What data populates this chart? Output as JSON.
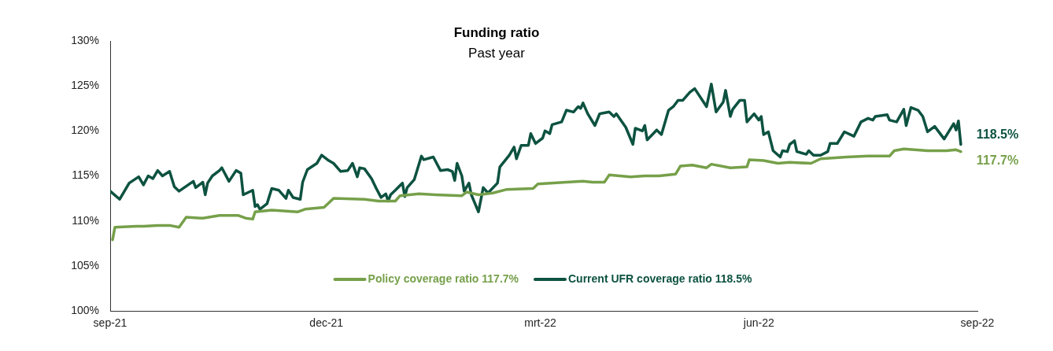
{
  "chart_data": {
    "type": "line",
    "title": "Funding ratio",
    "subtitle": "Past year",
    "xlim": [
      "2021-09-01",
      "2022-09-01"
    ],
    "xticks": [
      {
        "value": "2021-09-01",
        "label": "sep-21"
      },
      {
        "value": "2021-12-01",
        "label": "dec-21"
      },
      {
        "value": "2022-03-01",
        "label": "mrt-22"
      },
      {
        "value": "2022-06-01",
        "label": "jun-22"
      },
      {
        "value": "2022-09-01",
        "label": "sep-22"
      }
    ],
    "ylim": [
      100,
      130
    ],
    "yticks": [
      {
        "value": 100,
        "label": "100%"
      },
      {
        "value": 105,
        "label": "105%"
      },
      {
        "value": 110,
        "label": "110%"
      },
      {
        "value": 115,
        "label": "115%"
      },
      {
        "value": 120,
        "label": "120%"
      },
      {
        "value": 125,
        "label": "125%"
      },
      {
        "value": 130,
        "label": "130%"
      }
    ],
    "legend": "bottom",
    "line_style": "solid",
    "annotations": [
      {
        "text": "117.7%",
        "x": "2022-08-25",
        "y": 117.7
      },
      {
        "text": "118.5%",
        "x": "2022-08-25",
        "y": 118.5
      }
    ],
    "series": [
      {
        "name": "Policy coverage ratio 117.7%",
        "color": "#76a04a",
        "x": [
          "2021-09-02",
          "2021-09-03",
          "2021-09-12",
          "2021-09-15",
          "2021-09-21",
          "2021-09-26",
          "2021-09-30",
          "2021-10-03",
          "2021-10-10",
          "2021-10-17",
          "2021-10-25",
          "2021-10-28",
          "2021-10-31",
          "2021-11-01",
          "2021-11-08",
          "2021-11-19",
          "2021-11-22",
          "2021-11-30",
          "2021-12-04",
          "2021-12-17",
          "2021-12-23",
          "2021-12-30",
          "2022-01-01",
          "2022-01-09",
          "2022-01-16",
          "2022-01-27",
          "2022-01-29",
          "2022-02-03",
          "2022-02-09",
          "2022-02-15",
          "2022-02-26",
          "2022-02-28",
          "2022-03-12",
          "2022-03-19",
          "2022-03-23",
          "2022-03-28",
          "2022-03-30",
          "2022-04-08",
          "2022-04-14",
          "2022-04-20",
          "2022-04-27",
          "2022-04-29",
          "2022-05-04",
          "2022-05-10",
          "2022-05-12",
          "2022-05-20",
          "2022-05-27",
          "2022-05-28",
          "2022-06-03",
          "2022-06-09",
          "2022-06-14",
          "2022-06-23",
          "2022-06-27",
          "2022-07-08",
          "2022-07-17",
          "2022-07-26",
          "2022-07-28",
          "2022-08-01",
          "2022-08-11",
          "2022-08-19",
          "2022-08-23",
          "2022-08-25"
        ],
        "values": [
          107.9,
          109.3,
          109.4,
          109.4,
          109.5,
          109.5,
          109.3,
          110.4,
          110.3,
          110.6,
          110.6,
          110.3,
          110.2,
          111.0,
          111.2,
          111.0,
          111.3,
          111.5,
          112.5,
          112.4,
          112.2,
          112.2,
          112.8,
          113.0,
          112.9,
          112.8,
          113.2,
          112.9,
          113.1,
          113.5,
          113.6,
          114.1,
          114.3,
          114.4,
          114.3,
          114.3,
          115.1,
          114.9,
          115.0,
          115.0,
          115.2,
          116.1,
          116.2,
          115.9,
          116.3,
          115.9,
          116.0,
          116.8,
          116.7,
          116.4,
          116.5,
          116.4,
          116.9,
          117.1,
          117.2,
          117.2,
          117.8,
          118.0,
          117.8,
          117.8,
          117.9,
          117.7
        ]
      },
      {
        "name": "Current UFR coverage ratio 118.5%",
        "color": "#0d5240",
        "x": [
          "2021-09-01",
          "2021-09-05",
          "2021-09-07",
          "2021-09-09",
          "2021-09-13",
          "2021-09-15",
          "2021-09-17",
          "2021-09-19",
          "2021-09-21",
          "2021-09-23",
          "2021-09-26",
          "2021-09-28",
          "2021-09-30",
          "2021-10-06",
          "2021-10-07",
          "2021-10-10",
          "2021-10-11",
          "2021-10-12",
          "2021-10-14",
          "2021-10-17",
          "2021-10-18",
          "2021-10-21",
          "2021-10-24",
          "2021-10-26",
          "2021-10-27",
          "2021-10-31",
          "2021-11-01",
          "2021-11-02",
          "2021-11-03",
          "2021-11-06",
          "2021-11-08",
          "2021-11-11",
          "2021-11-14",
          "2021-11-15",
          "2021-11-17",
          "2021-11-20",
          "2021-11-21",
          "2021-11-23",
          "2021-11-27",
          "2021-11-29",
          "2021-12-02",
          "2021-12-04",
          "2021-12-07",
          "2021-12-10",
          "2021-12-12",
          "2021-12-14",
          "2021-12-15",
          "2021-12-17",
          "2021-12-20",
          "2021-12-22",
          "2021-12-24",
          "2021-12-26",
          "2021-12-27",
          "2021-12-28",
          "2021-12-30",
          "2022-01-02",
          "2022-01-03",
          "2022-01-04",
          "2022-01-07",
          "2022-01-10",
          "2022-01-11",
          "2022-01-15",
          "2022-01-18",
          "2022-01-21",
          "2022-01-23",
          "2022-01-24",
          "2022-01-25",
          "2022-01-27",
          "2022-01-28",
          "2022-01-30",
          "2022-01-31",
          "2022-02-03",
          "2022-02-05",
          "2022-02-07",
          "2022-02-11",
          "2022-02-12",
          "2022-02-16",
          "2022-02-18",
          "2022-02-19",
          "2022-02-21",
          "2022-02-24",
          "2022-02-25",
          "2022-02-27",
          "2022-03-02",
          "2022-03-03",
          "2022-03-05",
          "2022-03-06",
          "2022-03-10",
          "2022-03-12",
          "2022-03-15",
          "2022-03-17",
          "2022-03-18",
          "2022-03-19",
          "2022-03-21",
          "2022-03-24",
          "2022-03-26",
          "2022-03-30",
          "2022-04-01",
          "2022-04-02",
          "2022-04-06",
          "2022-04-09",
          "2022-04-10",
          "2022-04-13",
          "2022-04-14",
          "2022-04-15",
          "2022-04-19",
          "2022-04-21",
          "2022-04-24",
          "2022-04-26",
          "2022-04-28",
          "2022-04-30",
          "2022-05-03",
          "2022-05-05",
          "2022-05-10",
          "2022-05-12",
          "2022-05-14",
          "2022-05-17",
          "2022-05-18",
          "2022-05-20",
          "2022-05-21",
          "2022-05-24",
          "2022-05-26",
          "2022-05-27",
          "2022-05-30",
          "2022-06-01",
          "2022-06-02",
          "2022-06-03",
          "2022-06-05",
          "2022-06-07",
          "2022-06-10",
          "2022-06-11",
          "2022-06-13",
          "2022-06-14",
          "2022-06-16",
          "2022-06-17",
          "2022-06-21",
          "2022-06-22",
          "2022-06-24",
          "2022-06-27",
          "2022-06-30",
          "2022-07-01",
          "2022-07-04",
          "2022-07-07",
          "2022-07-11",
          "2022-07-14",
          "2022-07-17",
          "2022-07-19",
          "2022-07-20",
          "2022-07-25",
          "2022-07-26",
          "2022-07-29",
          "2022-08-01",
          "2022-08-02",
          "2022-08-04",
          "2022-08-07",
          "2022-08-09",
          "2022-08-11",
          "2022-08-14",
          "2022-08-18",
          "2022-08-22",
          "2022-08-23",
          "2022-08-24",
          "2022-08-25"
        ],
        "values": [
          113.3,
          112.4,
          113.3,
          114.2,
          114.9,
          114.0,
          115.0,
          114.7,
          115.6,
          115.0,
          115.5,
          113.8,
          113.3,
          114.4,
          113.7,
          114.3,
          112.9,
          114.2,
          115.0,
          115.6,
          115.9,
          114.4,
          115.6,
          115.3,
          112.9,
          113.4,
          111.6,
          111.8,
          111.3,
          111.9,
          113.6,
          113.4,
          112.5,
          113.4,
          112.6,
          112.4,
          114.3,
          115.7,
          116.4,
          117.3,
          116.7,
          116.4,
          115.5,
          115.6,
          116.4,
          114.9,
          115.9,
          115.8,
          114.7,
          113.6,
          112.6,
          113.0,
          112.2,
          112.9,
          113.4,
          114.2,
          112.7,
          113.7,
          114.6,
          117.2,
          116.8,
          117.1,
          115.6,
          115.7,
          115.5,
          114.5,
          116.4,
          115.0,
          113.3,
          114.2,
          112.9,
          111.0,
          113.7,
          113.1,
          114.2,
          116.0,
          117.3,
          118.2,
          116.9,
          118.4,
          118.4,
          119.7,
          118.6,
          119.2,
          120.0,
          119.7,
          120.7,
          121.0,
          122.3,
          122.1,
          122.7,
          122.5,
          123.1,
          121.9,
          120.6,
          121.9,
          122.1,
          121.6,
          121.9,
          120.4,
          118.5,
          120.3,
          120.0,
          120.6,
          119.0,
          120.1,
          119.6,
          122.3,
          122.7,
          123.4,
          123.4,
          124.3,
          124.7,
          122.7,
          125.2,
          122.1,
          123.2,
          124.5,
          121.6,
          122.4,
          123.4,
          123.4,
          121.0,
          121.9,
          121.2,
          121.6,
          119.6,
          119.9,
          117.8,
          117.1,
          117.8,
          117.7,
          118.5,
          118.9,
          117.7,
          117.4,
          117.8,
          117.3,
          117.3,
          117.7,
          118.6,
          118.6,
          119.9,
          119.4,
          121.0,
          121.4,
          121.2,
          121.6,
          121.8,
          121.2,
          121.0,
          122.4,
          120.6,
          122.6,
          122.3,
          121.6,
          119.9,
          120.5,
          119.1,
          120.8,
          120.1,
          121.1,
          118.5
        ]
      }
    ]
  }
}
